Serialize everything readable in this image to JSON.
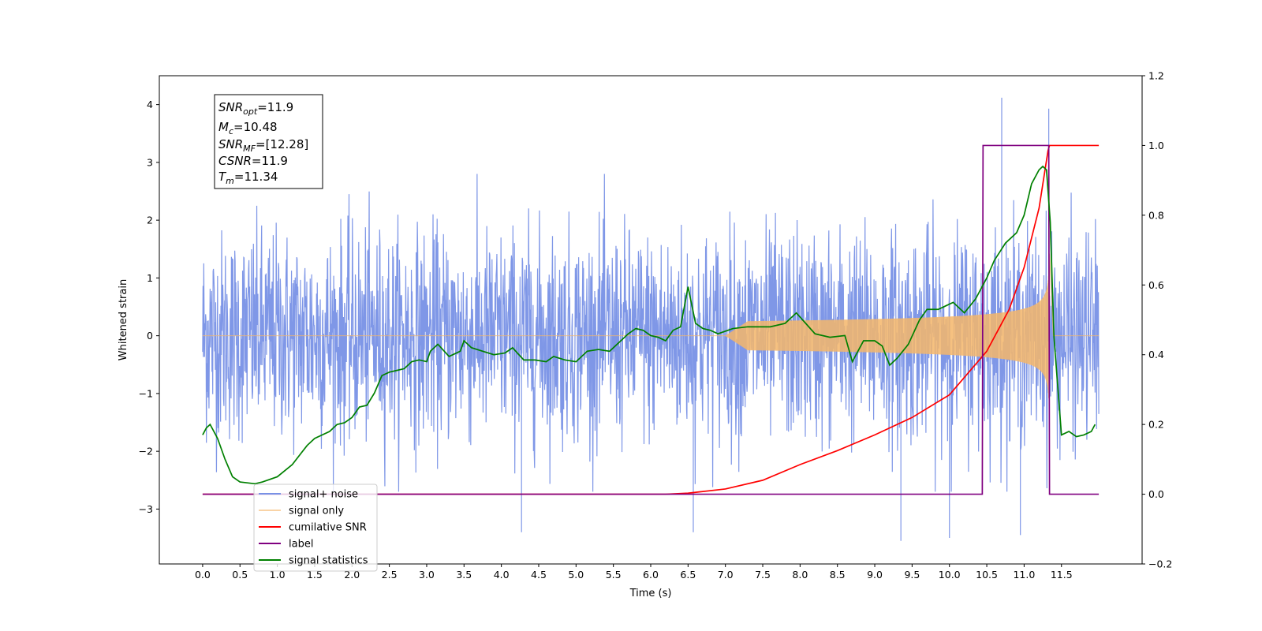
{
  "chart_data": {
    "type": "line",
    "xlabel": "Time (s)",
    "ylabel": "Whitened strain",
    "xlim": [
      -0.58,
      12.58
    ],
    "ylim": [
      -3.95,
      4.5
    ],
    "ylim_right": [
      -0.2,
      1.2
    ],
    "x_ticks": [
      "0.0",
      "0.5",
      "1.0",
      "1.5",
      "2.0",
      "2.5",
      "3.0",
      "3.5",
      "4.0",
      "4.5",
      "5.0",
      "5.5",
      "6.0",
      "6.5",
      "7.0",
      "7.5",
      "8.0",
      "8.5",
      "9.0",
      "9.5",
      "10.0",
      "10.5",
      "11.0",
      "11.5"
    ],
    "y_ticks_left": [
      "4",
      "3",
      "2",
      "1",
      "0",
      "−1",
      "−2",
      "−3"
    ],
    "y_ticks_right": [
      "1.2",
      "1.0",
      "0.8",
      "0.6",
      "0.4",
      "0.2",
      "0.0",
      "−0.2"
    ],
    "grid": false,
    "legend_position": "lower-left",
    "annotation": {
      "snr_opt": {
        "base": "SNR",
        "sub": "opt",
        "value": "=11.9"
      },
      "mc": {
        "base": "M",
        "sub": "c",
        "value": "=10.48"
      },
      "snr_mf": {
        "base": "SNR",
        "sub": "MF",
        "value": "=[12.28]"
      },
      "csnr": {
        "base": "CSNR",
        "value": "=11.9"
      },
      "tm": {
        "base": "T",
        "sub": "m",
        "value": "=11.34"
      }
    },
    "series": [
      {
        "name": "signal+ noise",
        "color": "#7891e6",
        "axis": "left",
        "description_type": "noise",
        "noise_envelope": {
          "typical_range": [
            -2.4,
            2.4
          ],
          "extreme_range": [
            -3.55,
            4.12
          ]
        },
        "spikes": [
          {
            "x": 10.7,
            "y": 4.12
          },
          {
            "x": 11.33,
            "y": 3.93
          },
          {
            "x": 4.27,
            "y": -3.4
          },
          {
            "x": 6.57,
            "y": -3.4
          },
          {
            "x": 9.35,
            "y": -3.55
          },
          {
            "x": 10.0,
            "y": -3.5
          },
          {
            "x": 10.95,
            "y": -3.45
          }
        ]
      },
      {
        "name": "signal only",
        "color": "#f5b66a",
        "axis": "left",
        "chirp": {
          "start": 7.0,
          "end": 11.34,
          "peak_amplitude": 0.95
        }
      },
      {
        "name": "cumilative SNR",
        "color": "#ff0000",
        "axis": "right",
        "x": [
          0.0,
          6.2,
          6.5,
          7.0,
          7.5,
          8.0,
          8.5,
          9.0,
          9.5,
          10.0,
          10.5,
          10.8,
          11.0,
          11.2,
          11.32,
          11.34,
          11.5,
          12.0
        ],
        "y": [
          0.0,
          0.0,
          0.003,
          0.015,
          0.04,
          0.085,
          0.125,
          0.17,
          0.22,
          0.285,
          0.41,
          0.53,
          0.65,
          0.82,
          0.985,
          1.0,
          1.0,
          1.0
        ]
      },
      {
        "name": "label",
        "color": "#800080",
        "axis": "right",
        "x": [
          0.0,
          10.44,
          10.45,
          11.33,
          11.34,
          12.0
        ],
        "y": [
          0.0,
          0.0,
          1.0,
          1.0,
          0.0,
          0.0
        ]
      },
      {
        "name": "signal statistics",
        "color": "#008000",
        "axis": "right",
        "x": [
          0.0,
          0.05,
          0.1,
          0.2,
          0.3,
          0.4,
          0.5,
          0.7,
          0.8,
          1.0,
          1.2,
          1.4,
          1.5,
          1.7,
          1.8,
          1.9,
          2.0,
          2.1,
          2.2,
          2.3,
          2.4,
          2.5,
          2.6,
          2.7,
          2.8,
          2.9,
          3.0,
          3.05,
          3.15,
          3.3,
          3.45,
          3.5,
          3.6,
          3.75,
          3.9,
          4.05,
          4.15,
          4.3,
          4.45,
          4.6,
          4.7,
          4.85,
          5.0,
          5.15,
          5.3,
          5.45,
          5.6,
          5.7,
          5.8,
          5.9,
          6.0,
          6.1,
          6.2,
          6.3,
          6.4,
          6.5,
          6.6,
          6.7,
          6.8,
          6.9,
          7.1,
          7.3,
          7.6,
          7.8,
          7.95,
          8.2,
          8.4,
          8.6,
          8.7,
          8.85,
          9.0,
          9.1,
          9.2,
          9.3,
          9.45,
          9.6,
          9.7,
          9.85,
          9.95,
          10.05,
          10.2,
          10.35,
          10.5,
          10.6,
          10.75,
          10.9,
          11.0,
          11.1,
          11.2,
          11.25,
          11.3,
          11.35,
          11.4,
          11.5,
          11.6,
          11.7,
          11.8,
          11.9,
          11.95
        ],
        "y": [
          0.17,
          0.19,
          0.2,
          0.16,
          0.1,
          0.05,
          0.035,
          0.03,
          0.035,
          0.05,
          0.085,
          0.14,
          0.16,
          0.18,
          0.2,
          0.205,
          0.22,
          0.25,
          0.255,
          0.29,
          0.34,
          0.35,
          0.355,
          0.36,
          0.38,
          0.385,
          0.38,
          0.41,
          0.43,
          0.395,
          0.41,
          0.44,
          0.42,
          0.41,
          0.4,
          0.405,
          0.42,
          0.385,
          0.385,
          0.38,
          0.395,
          0.385,
          0.38,
          0.41,
          0.415,
          0.41,
          0.44,
          0.46,
          0.475,
          0.47,
          0.455,
          0.45,
          0.44,
          0.47,
          0.48,
          0.595,
          0.49,
          0.475,
          0.47,
          0.46,
          0.475,
          0.48,
          0.48,
          0.49,
          0.52,
          0.46,
          0.45,
          0.455,
          0.38,
          0.44,
          0.44,
          0.425,
          0.37,
          0.39,
          0.43,
          0.5,
          0.53,
          0.53,
          0.54,
          0.55,
          0.52,
          0.56,
          0.62,
          0.67,
          0.72,
          0.75,
          0.8,
          0.89,
          0.93,
          0.94,
          0.93,
          0.78,
          0.45,
          0.17,
          0.18,
          0.165,
          0.17,
          0.18,
          0.2
        ]
      }
    ]
  }
}
